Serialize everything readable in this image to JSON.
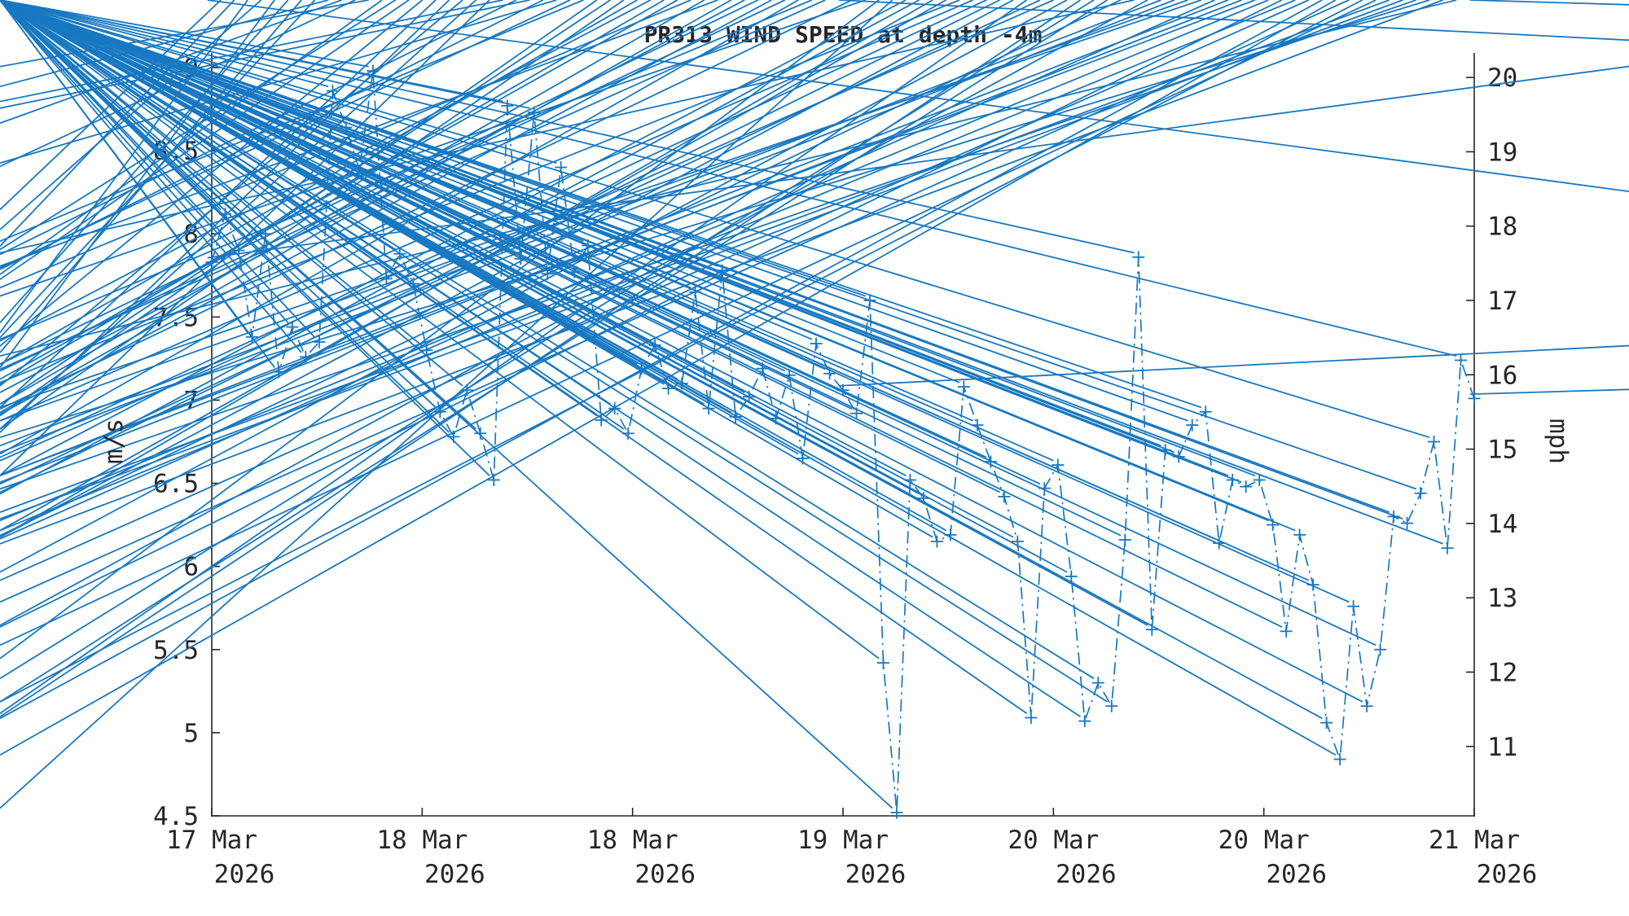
{
  "figure": {
    "title": "PR313 WIND SPEED at depth -4m"
  },
  "chart_data": {
    "type": "line",
    "title": "PR313 WIND SPEED at depth -4m",
    "station": "PR313",
    "linestyle": "dash-dot",
    "marker": "asterisk",
    "grid": "off",
    "legend": "none",
    "series": [
      {
        "name": "wind speed",
        "color": "#1878c2",
        "x_start_label": "17 Mar 2026",
        "x_interval_hours": 1,
        "values": [
          7.83,
          8.12,
          7.9,
          7.38,
          8.0,
          7.17,
          7.44,
          7.26,
          7.35,
          8.86,
          8.64,
          8.38,
          8.98,
          7.73,
          7.88,
          7.7,
          7.3,
          6.93,
          6.78,
          7.06,
          6.8,
          6.52,
          8.77,
          7.85,
          8.73,
          7.76,
          8.4,
          7.77,
          7.93,
          6.88,
          6.95,
          6.8,
          7.19,
          7.33,
          7.07,
          7.1,
          7.65,
          6.95,
          7.78,
          6.9,
          7.02,
          7.19,
          6.89,
          7.15,
          6.65,
          7.34,
          7.16,
          7.06,
          6.92,
          7.6,
          5.42,
          4.52,
          6.52,
          6.41,
          6.15,
          6.19,
          7.08,
          6.85,
          6.63,
          6.42,
          6.15,
          5.09,
          6.47,
          6.61,
          5.94,
          5.07,
          5.3,
          5.16,
          6.16,
          7.86,
          5.62,
          6.7,
          6.66,
          6.85,
          6.93,
          6.14,
          6.52,
          6.48,
          6.52,
          6.25,
          5.61,
          6.19,
          5.89,
          5.06,
          4.84,
          5.76,
          5.16,
          5.5,
          6.3,
          6.26,
          6.44,
          6.75,
          6.11,
          7.24,
          7.01
        ]
      }
    ],
    "xlabel": "",
    "x_tick_labels": [
      {
        "day": "17 Mar",
        "year": "2026"
      },
      {
        "day": "18 Mar",
        "year": "2026"
      },
      {
        "day": "18 Mar",
        "year": "2026"
      },
      {
        "day": "19 Mar",
        "year": "2026"
      },
      {
        "day": "20 Mar",
        "year": "2026"
      },
      {
        "day": "20 Mar",
        "year": "2026"
      },
      {
        "day": "21 Mar",
        "year": "2026"
      }
    ],
    "y_left": {
      "label": "m/s",
      "lim": [
        4.5,
        9.09
      ],
      "ticks": [
        4.5,
        5,
        5.5,
        6,
        6.5,
        7,
        7.5,
        8,
        8.5,
        9
      ]
    },
    "y_right": {
      "label": "mph",
      "ticks": [
        11,
        12,
        13,
        14,
        15,
        16,
        17,
        18,
        19,
        20
      ],
      "mph_per_ms": 2.23694
    }
  },
  "colors": {
    "series": "#1878c2",
    "axis": "#262626",
    "text": "#262626",
    "background": "#ffffff"
  }
}
